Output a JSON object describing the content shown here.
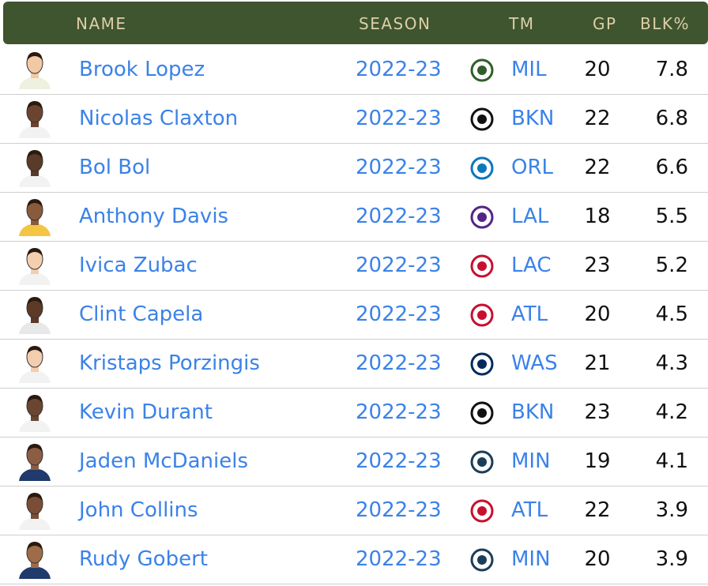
{
  "table": {
    "columns": [
      "NAME",
      "SEASON",
      "TM",
      "GP",
      "BLK%"
    ],
    "rows": [
      [
        "Brook Lopez",
        "2022-23",
        "MIL",
        20,
        7.8
      ],
      [
        "Nicolas Claxton",
        "2022-23",
        "BKN",
        22,
        6.8
      ],
      [
        "Bol Bol",
        "2022-23",
        "ORL",
        22,
        6.6
      ],
      [
        "Anthony Davis",
        "2022-23",
        "LAL",
        18,
        5.5
      ],
      [
        "Ivica Zubac",
        "2022-23",
        "LAC",
        23,
        5.2
      ],
      [
        "Clint Capela",
        "2022-23",
        "ATL",
        20,
        4.5
      ],
      [
        "Kristaps Porzingis",
        "2022-23",
        "WAS",
        21,
        4.3
      ],
      [
        "Kevin Durant",
        "2022-23",
        "BKN",
        23,
        4.2
      ],
      [
        "Jaden McDaniels",
        "2022-23",
        "MIN",
        19,
        4.1
      ],
      [
        "John Collins",
        "2022-23",
        "ATL",
        22,
        3.9
      ],
      [
        "Rudy Gobert",
        "2022-23",
        "MIN",
        20,
        3.9
      ]
    ]
  }
}
